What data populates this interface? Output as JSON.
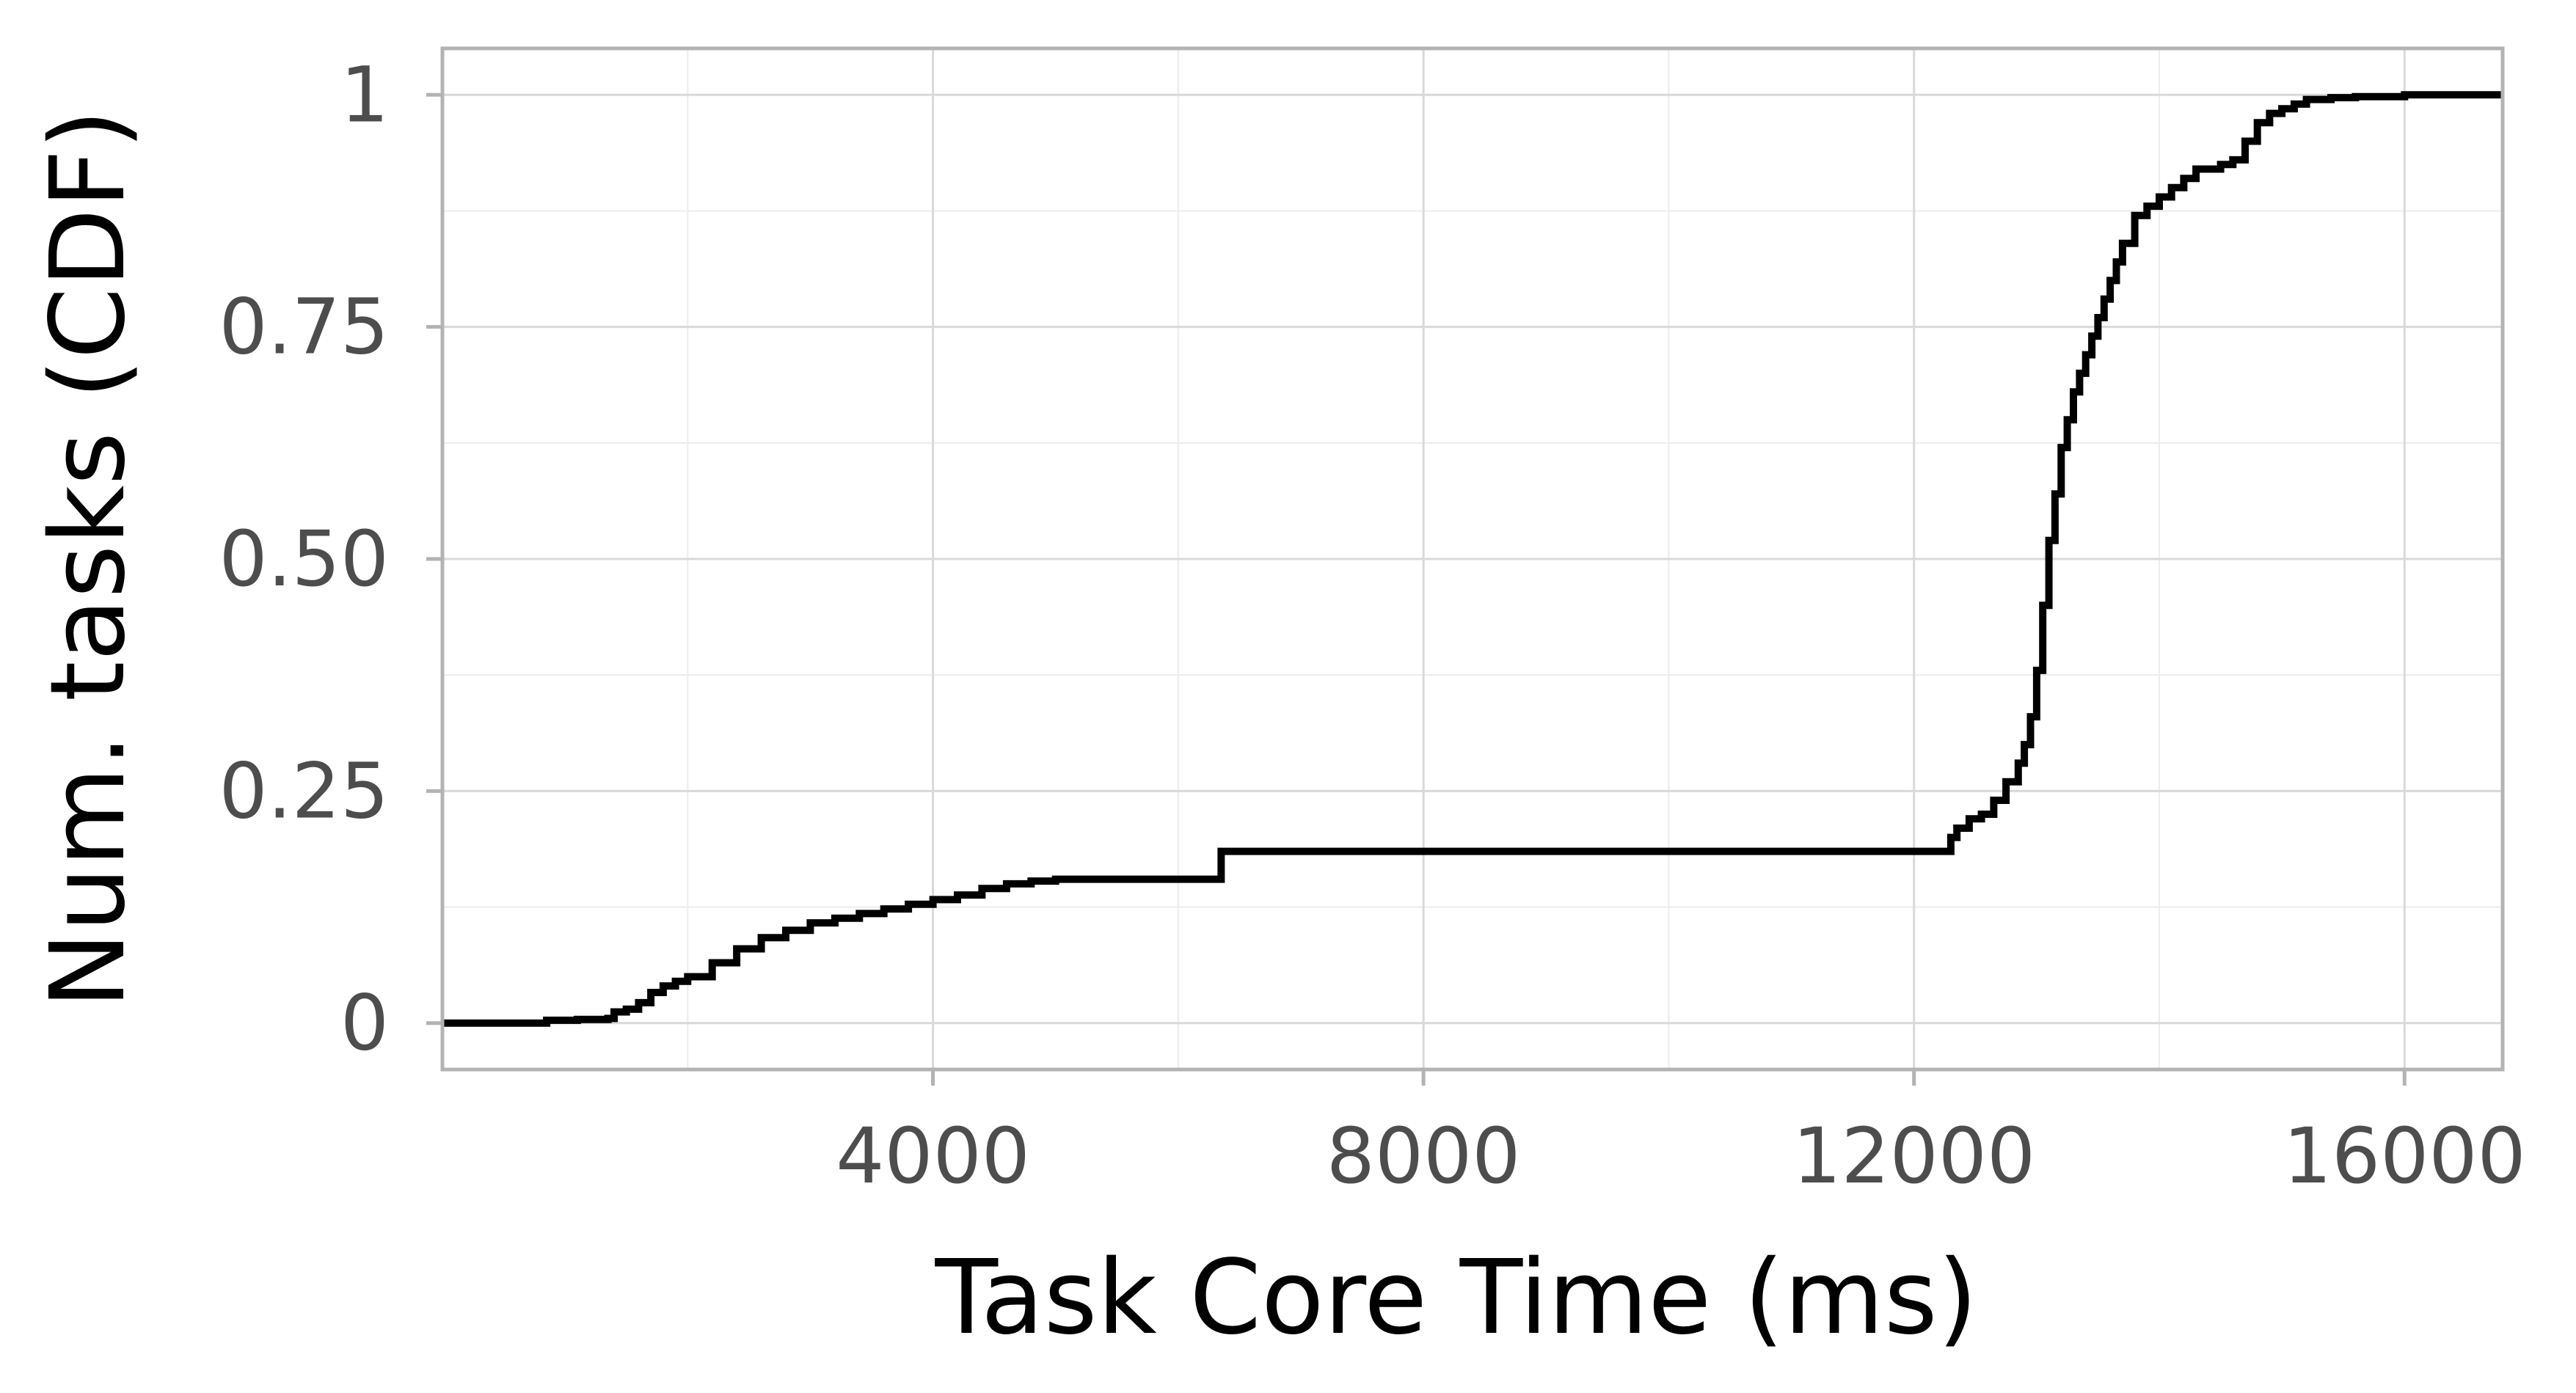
{
  "chart_data": {
    "type": "line",
    "step": true,
    "xlabel": "Task Core Time (ms)",
    "ylabel": "Num. tasks (CDF)",
    "xlim": [
      0,
      16800
    ],
    "ylim": [
      -0.05,
      1.05
    ],
    "x_ticks": [
      {
        "value": 4000,
        "label": "4000"
      },
      {
        "value": 8000,
        "label": "8000"
      },
      {
        "value": 12000,
        "label": "12000"
      },
      {
        "value": 16000,
        "label": "16000"
      }
    ],
    "x_minor": [
      2000,
      6000,
      10000,
      14000
    ],
    "y_ticks": [
      {
        "value": 0,
        "label": "0"
      },
      {
        "value": 0.25,
        "label": "0.25"
      },
      {
        "value": 0.5,
        "label": "0.50"
      },
      {
        "value": 0.75,
        "label": "0.75"
      },
      {
        "value": 1,
        "label": "1"
      }
    ],
    "y_minor": [
      0.125,
      0.375,
      0.625,
      0.875
    ],
    "grid": true,
    "line_color": "#000000",
    "series": [
      {
        "x": [
          0,
          750,
          850,
          1100,
          1350,
          1400,
          1500,
          1600,
          1700,
          1800,
          1900,
          2000,
          2200,
          2400,
          2600,
          2800,
          3000,
          3200,
          3400,
          3600,
          3800,
          4000,
          4200,
          4400,
          4600,
          4800,
          5000,
          5500,
          6000,
          6250,
          6350,
          6500,
          7000,
          8000,
          10000,
          12000,
          12250,
          12300,
          12350,
          12450,
          12550,
          12650,
          12750,
          12850,
          12900,
          12950,
          13000,
          13050,
          13100,
          13150,
          13200,
          13250,
          13300,
          13350,
          13400,
          13450,
          13500,
          13550,
          13600,
          13650,
          13700,
          13800,
          13900,
          14000,
          14100,
          14200,
          14300,
          14400,
          14500,
          14600,
          14700,
          14800,
          14900,
          15000,
          15100,
          15200,
          15400,
          15600,
          16000,
          16800
        ],
        "y": [
          0,
          0,
          0.003,
          0.004,
          0.005,
          0.012,
          0.015,
          0.022,
          0.033,
          0.04,
          0.045,
          0.05,
          0.065,
          0.08,
          0.092,
          0.1,
          0.108,
          0.113,
          0.118,
          0.123,
          0.128,
          0.133,
          0.138,
          0.145,
          0.15,
          0.153,
          0.155,
          0.155,
          0.155,
          0.155,
          0.185,
          0.185,
          0.185,
          0.185,
          0.185,
          0.185,
          0.185,
          0.2,
          0.21,
          0.22,
          0.225,
          0.24,
          0.26,
          0.28,
          0.3,
          0.33,
          0.38,
          0.45,
          0.52,
          0.57,
          0.62,
          0.65,
          0.68,
          0.7,
          0.72,
          0.74,
          0.76,
          0.78,
          0.8,
          0.82,
          0.84,
          0.87,
          0.88,
          0.89,
          0.9,
          0.91,
          0.92,
          0.92,
          0.925,
          0.93,
          0.95,
          0.97,
          0.98,
          0.985,
          0.99,
          0.995,
          0.997,
          0.998,
          1.0,
          1.0
        ]
      }
    ]
  }
}
